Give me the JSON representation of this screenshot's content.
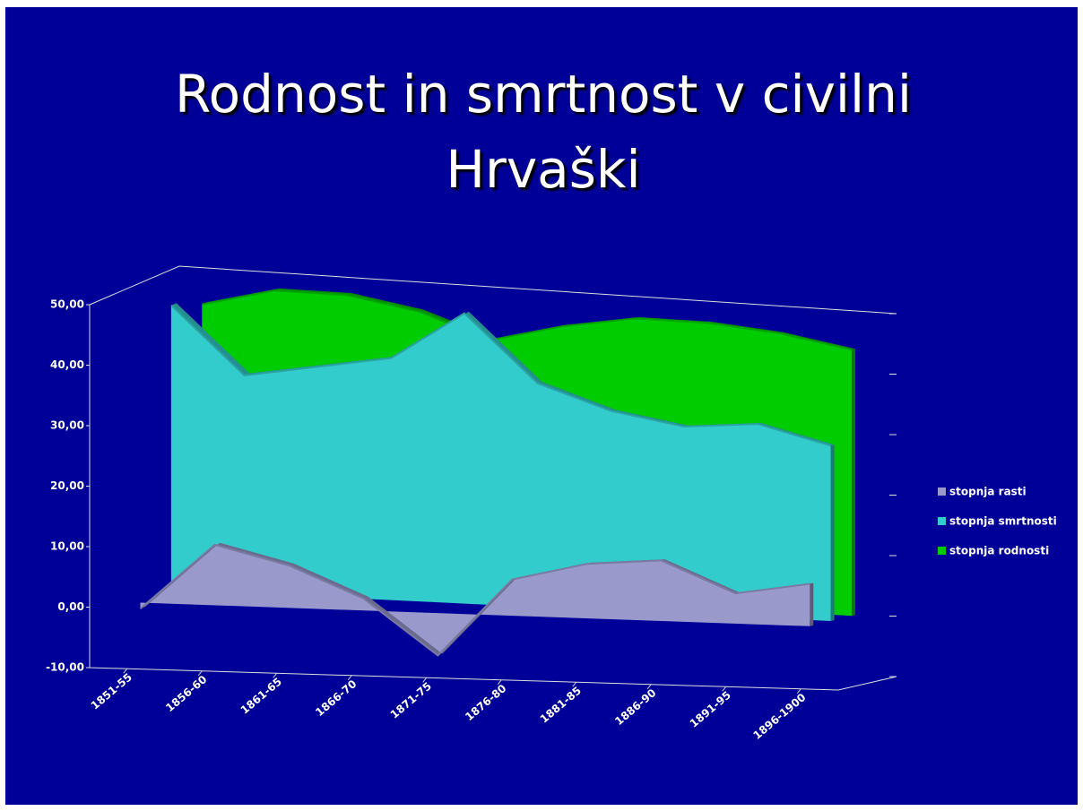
{
  "chart_data": {
    "type": "area3d",
    "title": "Rodnost in smrtnost v civilni Hrvaški",
    "categories": [
      "1851-55",
      "1856-60",
      "1861-65",
      "1866-70",
      "1871-75",
      "1876-80",
      "1881-85",
      "1886-90",
      "1891-95",
      "1896-1900"
    ],
    "series": [
      {
        "name": "stopnja rasti",
        "color": "#9999cc",
        "values": [
          -1,
          10,
          7,
          2,
          -7,
          6,
          9,
          10,
          5,
          7
        ]
      },
      {
        "name": "stopnja smrtnosti",
        "color": "#33cccc",
        "values": [
          47,
          36,
          38,
          40,
          48,
          37,
          33,
          31,
          32,
          29
        ]
      },
      {
        "name": "stopnja rodnosti",
        "color": "#00cc00",
        "values": [
          45,
          48,
          48,
          46,
          42,
          45,
          47,
          47,
          46,
          44
        ]
      }
    ],
    "ylim": [
      -10,
      50
    ],
    "yticks": [
      {
        "value": -10,
        "label": "-10,00"
      },
      {
        "value": 0,
        "label": "0,00"
      },
      {
        "value": 10,
        "label": "10,00"
      },
      {
        "value": 20,
        "label": "20,00"
      },
      {
        "value": 30,
        "label": "30,00"
      },
      {
        "value": 40,
        "label": "40,00"
      },
      {
        "value": 50,
        "label": "50,00"
      }
    ],
    "legend": "right"
  }
}
